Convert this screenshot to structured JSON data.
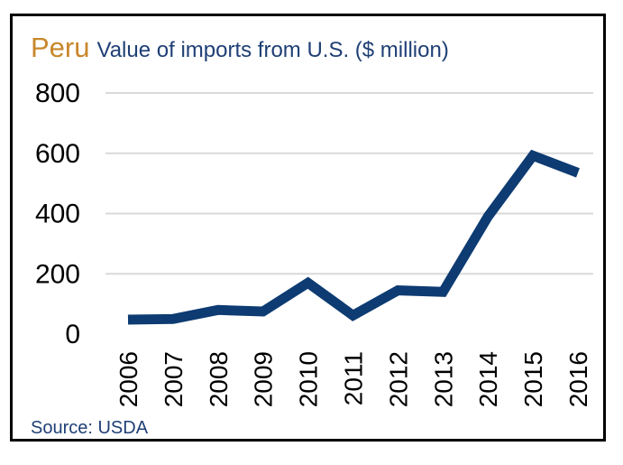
{
  "title": {
    "country": "Peru",
    "subtitle": "Value of imports from U.S. ($ million)"
  },
  "source": "Source: USDA",
  "colors": {
    "line": "#0d3b72",
    "country": "#c8872b",
    "subtitle": "#1f3f75",
    "grid": "#d9d9d9",
    "frame": "#000000"
  },
  "chart_data": {
    "type": "line",
    "title": "Peru",
    "subtitle": "Value of imports from U.S. ($ million)",
    "x": [
      "2006",
      "2007",
      "2008",
      "2009",
      "2010",
      "2011",
      "2012",
      "2013",
      "2014",
      "2015",
      "2016"
    ],
    "series": [
      {
        "values": [
          48,
          50,
          80,
          75,
          170,
          62,
          145,
          140,
          390,
          592,
          535
        ]
      }
    ],
    "yticks": [
      "0",
      "200",
      "400",
      "600",
      "800"
    ],
    "ylim": [
      0,
      800
    ],
    "grid": true,
    "legend": "none",
    "xlabel": "",
    "ylabel": ""
  }
}
